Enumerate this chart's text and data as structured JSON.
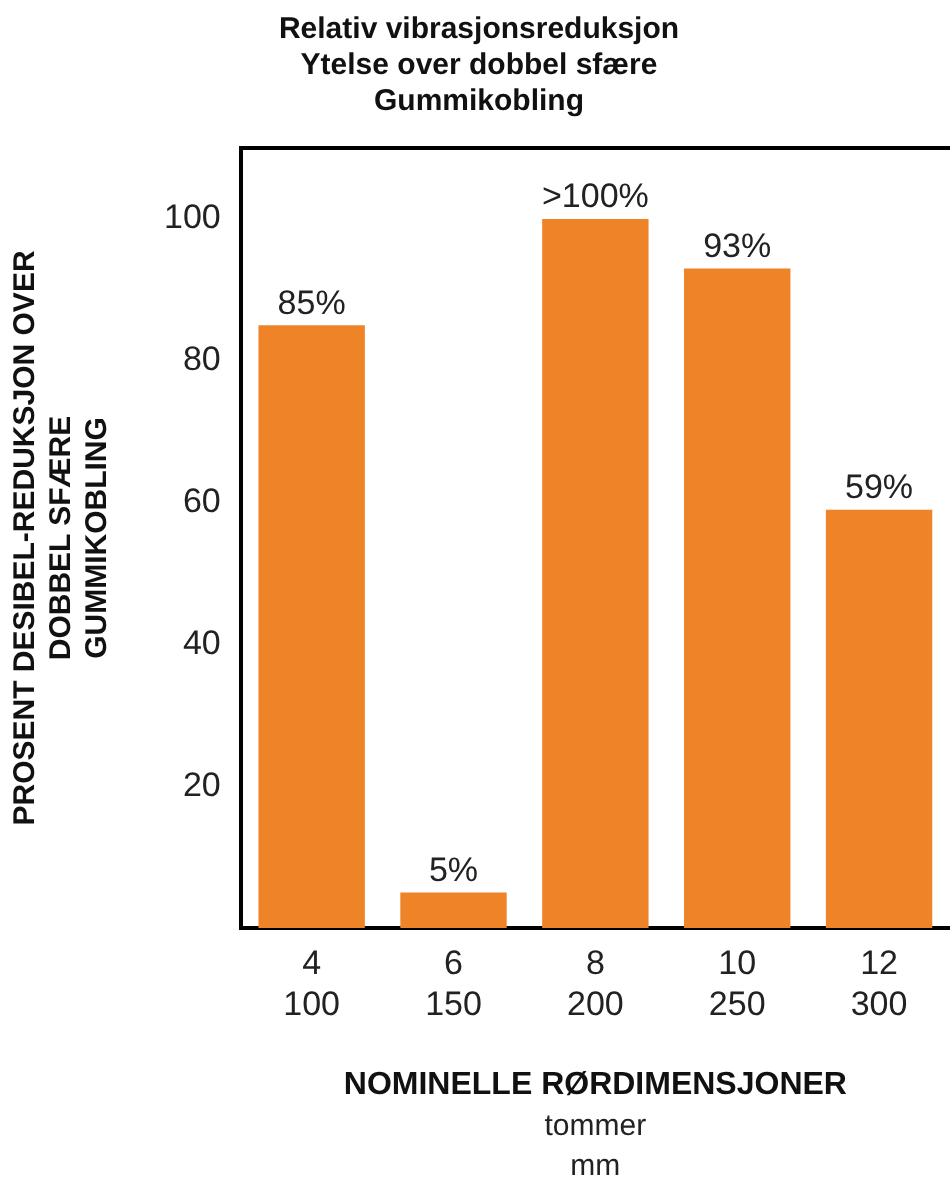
{
  "chart_data": {
    "type": "bar",
    "title": "Relativ vibrasjonsreduksjon\nYtelse over dobbel sfære\nGummikobling",
    "xlabel": "NOMINELLE RØRDIMENSJONER",
    "ylabel": "PROSENT DESIBEL-REDUKSJON OVER\nDOBBEL SFÆRE\nGUMMIKOBLING",
    "annotations": [
      "tommer",
      "mm"
    ],
    "categories": [
      "4\n100",
      "6\n150",
      "8\n200",
      "10\n250",
      "12\n300"
    ],
    "values": [
      85,
      5,
      100,
      93,
      59
    ],
    "value_labels": [
      "85%",
      "5%",
      ">100%",
      "93%",
      "59%"
    ],
    "color": "#ee8427",
    "ylim": [
      0,
      110
    ],
    "yticks": [
      20,
      40,
      60,
      80,
      100
    ],
    "grid": false,
    "legend": false
  }
}
